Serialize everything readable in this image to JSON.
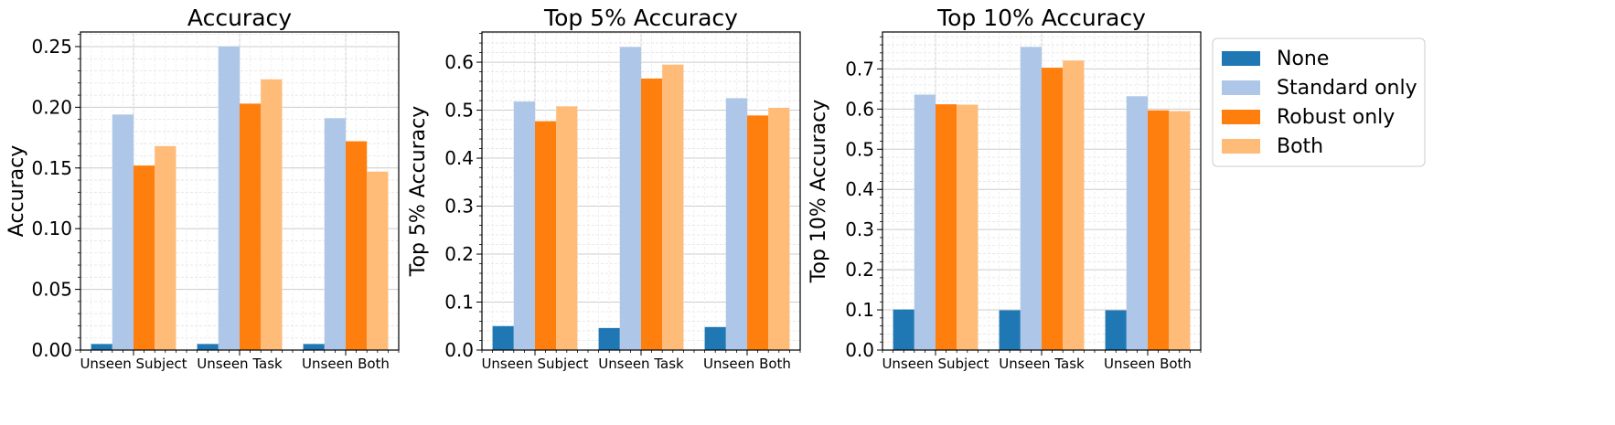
{
  "legend": {
    "placement": "outside-right",
    "entries": [
      "None",
      "Standard only",
      "Robust only",
      "Both"
    ]
  },
  "colors": {
    "None": "#1f77b4",
    "Standard only": "#aec7e8",
    "Robust only": "#ff7f0e",
    "Both": "#ffbb78"
  },
  "chart_data": [
    {
      "type": "bar",
      "title": "Accuracy",
      "ylabel": "Accuracy",
      "xlabel": "",
      "categories": [
        "Unseen Subject",
        "Unseen Task",
        "Unseen Both"
      ],
      "ylim": [
        0,
        0.262
      ],
      "yticks": [
        0.0,
        0.05,
        0.1,
        0.15,
        0.2,
        0.25
      ],
      "ytick_labels": [
        "0.00",
        "0.05",
        "0.10",
        "0.15",
        "0.20",
        "0.25"
      ],
      "grid": true,
      "series": [
        {
          "name": "None",
          "values": [
            0.005,
            0.005,
            0.005
          ]
        },
        {
          "name": "Standard only",
          "values": [
            0.194,
            0.25,
            0.191
          ]
        },
        {
          "name": "Robust only",
          "values": [
            0.152,
            0.203,
            0.172
          ]
        },
        {
          "name": "Both",
          "values": [
            0.168,
            0.223,
            0.147
          ]
        }
      ]
    },
    {
      "type": "bar",
      "title": "Top 5% Accuracy",
      "ylabel": "Top 5% Accuracy",
      "xlabel": "",
      "categories": [
        "Unseen Subject",
        "Unseen Task",
        "Unseen Both"
      ],
      "ylim": [
        0,
        0.663
      ],
      "yticks": [
        0.0,
        0.1,
        0.2,
        0.3,
        0.4,
        0.5,
        0.6
      ],
      "ytick_labels": [
        "0.0",
        "0.1",
        "0.2",
        "0.3",
        "0.4",
        "0.5",
        "0.6"
      ],
      "grid": true,
      "series": [
        {
          "name": "None",
          "values": [
            0.05,
            0.046,
            0.048
          ]
        },
        {
          "name": "Standard only",
          "values": [
            0.518,
            0.632,
            0.525
          ]
        },
        {
          "name": "Robust only",
          "values": [
            0.477,
            0.566,
            0.489
          ]
        },
        {
          "name": "Both",
          "values": [
            0.508,
            0.595,
            0.505
          ]
        }
      ]
    },
    {
      "type": "bar",
      "title": "Top 10% Accuracy",
      "ylabel": "Top 10% Accuracy",
      "xlabel": "",
      "categories": [
        "Unseen Subject",
        "Unseen Task",
        "Unseen Both"
      ],
      "ylim": [
        0,
        0.792
      ],
      "yticks": [
        0.0,
        0.1,
        0.2,
        0.3,
        0.4,
        0.5,
        0.6,
        0.7
      ],
      "ytick_labels": [
        "0.0",
        "0.1",
        "0.2",
        "0.3",
        "0.4",
        "0.5",
        "0.6",
        "0.7"
      ],
      "grid": true,
      "series": [
        {
          "name": "None",
          "values": [
            0.101,
            0.099,
            0.099
          ]
        },
        {
          "name": "Standard only",
          "values": [
            0.636,
            0.755,
            0.632
          ]
        },
        {
          "name": "Robust only",
          "values": [
            0.612,
            0.703,
            0.597
          ]
        },
        {
          "name": "Both",
          "values": [
            0.611,
            0.721,
            0.595
          ]
        }
      ]
    }
  ]
}
